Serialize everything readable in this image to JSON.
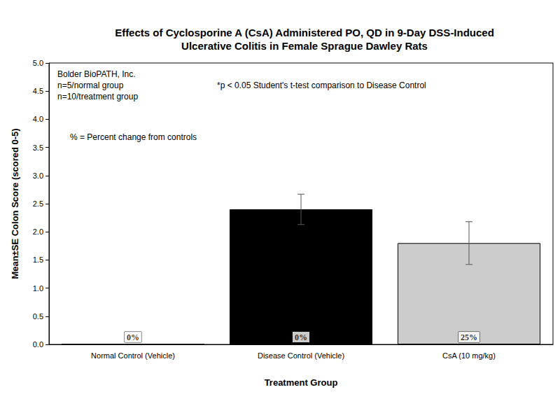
{
  "chart_data": {
    "type": "bar",
    "title": "Effects of Cyclosporine A (CsA) Administered PO, QD in 9-Day DSS-Induced\nUlcerative Colitis in Female Sprague Dawley Rats",
    "x_label": "Treatment Group",
    "y_label": "Mean±SE Colon Score (scored 0-5)",
    "categories": [
      "Normal Control (Vehicle)",
      "Disease Control (Vehicle)",
      "CsA (10 mg/kg)"
    ],
    "values": [
      0,
      2.4,
      1.8
    ],
    "errors": [
      0,
      0.27,
      0.38
    ],
    "colors": [
      "#ffffff",
      "#000000",
      "#cccccc"
    ],
    "percent_labels": [
      "0%",
      "0%",
      "25%"
    ],
    "annotations": [
      "Bolder BioPATH, Inc.",
      "n=5/normal group",
      "n=10/treatment group",
      "*p < 0.05 Student's t-test comparison to Disease Control",
      "% = Percent change from controls"
    ],
    "ylim": [
      0,
      5
    ],
    "yticks": [
      {
        "value": 0,
        "label": "0.0"
      },
      {
        "value": 0.5,
        "label": "0.5"
      },
      {
        "value": 1,
        "label": "1.0"
      },
      {
        "value": 1.5,
        "label": "1.5"
      },
      {
        "value": 2,
        "label": "2.0"
      },
      {
        "value": 2.5,
        "label": "2.5"
      },
      {
        "value": 3,
        "label": "3.0"
      },
      {
        "value": 3.5,
        "label": "3.5"
      },
      {
        "value": 4,
        "label": "4.0"
      },
      {
        "value": 4.5,
        "label": "4.5"
      },
      {
        "value": 5,
        "label": "5.0"
      }
    ],
    "grid": false
  }
}
